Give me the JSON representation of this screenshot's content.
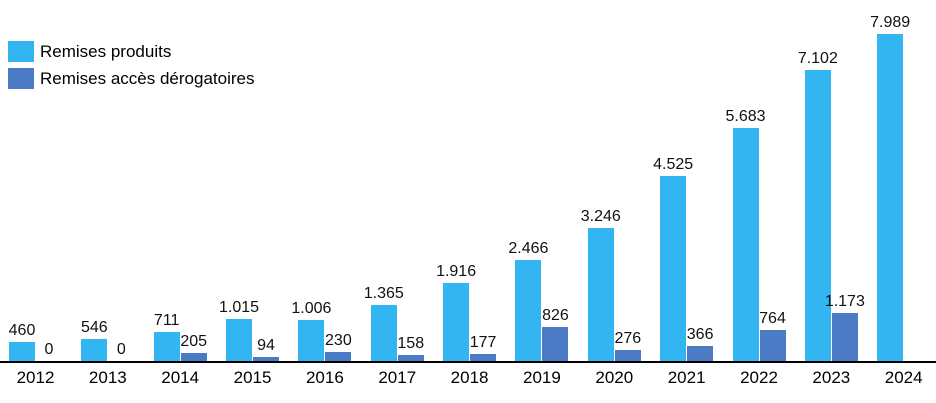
{
  "legend": {
    "items": [
      {
        "label": "Remises produits"
      },
      {
        "label": "Remises accès dérogatoires"
      }
    ]
  },
  "chart_data": {
    "type": "bar",
    "title": "",
    "xlabel": "",
    "ylabel": "",
    "ylim": [
      0,
      8400
    ],
    "grid": false,
    "legend_position": "top-left",
    "axis_line_color": "#000000",
    "categories": [
      "2012",
      "2013",
      "2014",
      "2015",
      "2016",
      "2017",
      "2018",
      "2019",
      "2020",
      "2021",
      "2022",
      "2023",
      "2024"
    ],
    "series": [
      {
        "name": "Remises produits",
        "color": "#33B5F2",
        "values": [
          460,
          546,
          711,
          1015,
          1006,
          1365,
          1916,
          2466,
          3246,
          4525,
          5683,
          7102,
          7989
        ],
        "labels": [
          "460",
          "546",
          "711",
          "1.015",
          "1.006",
          "1.365",
          "1.916",
          "2.466",
          "3.246",
          "4.525",
          "5.683",
          "7.102",
          "7.989"
        ]
      },
      {
        "name": "Remises accès dérogatoires",
        "color": "#4A7BC4",
        "values": [
          0,
          0,
          205,
          94,
          230,
          158,
          177,
          826,
          276,
          366,
          764,
          1173,
          null
        ],
        "labels": [
          "0",
          "0",
          "205",
          "94",
          "230",
          "158",
          "177",
          "826",
          "276",
          "366",
          "764",
          "1.173",
          null
        ]
      }
    ]
  }
}
